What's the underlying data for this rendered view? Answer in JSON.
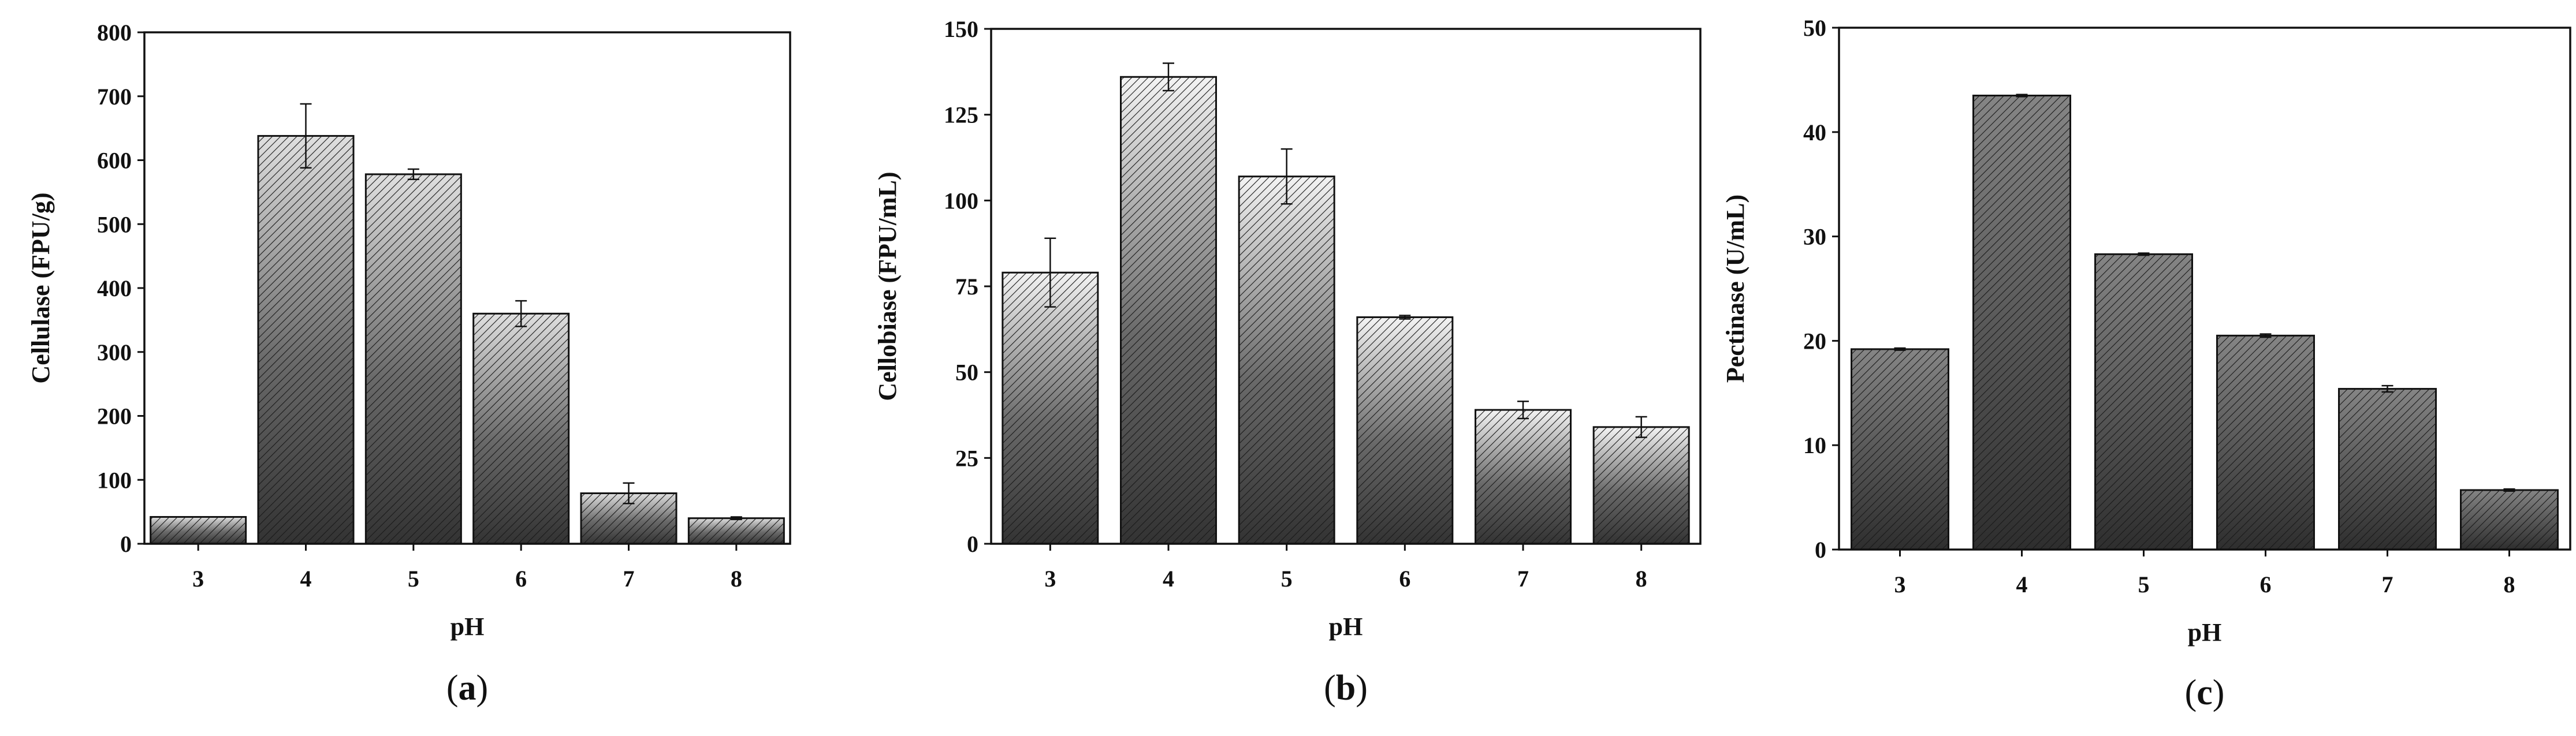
{
  "chart_data": [
    {
      "type": "bar",
      "panel": "(a)",
      "categories": [
        "3",
        "4",
        "5",
        "6",
        "7",
        "8"
      ],
      "values": [
        42,
        638,
        578,
        360,
        79,
        40
      ],
      "errors": [
        0,
        50,
        8,
        20,
        16,
        2
      ],
      "xlabel": "pH",
      "ylabel": "Cellulase (FPU/g)",
      "ylim": [
        0,
        800
      ],
      "yticks": [
        0,
        100,
        200,
        300,
        400,
        500,
        600,
        700,
        800
      ],
      "grid": false,
      "hatch": "diagonal",
      "colors": {
        "dark": "#333333",
        "mid": "#6a6a6a",
        "light": "#e0e0e0"
      }
    },
    {
      "type": "bar",
      "panel": "(b)",
      "categories": [
        "3",
        "4",
        "5",
        "6",
        "7",
        "8"
      ],
      "values": [
        79,
        136,
        107,
        66,
        39,
        34
      ],
      "errors": [
        10,
        4,
        8,
        0.5,
        2.5,
        3
      ],
      "xlabel": "pH",
      "ylabel": "Cellobiase (FPU/mL)",
      "ylim": [
        0,
        150
      ],
      "yticks": [
        0,
        25,
        50,
        75,
        100,
        125,
        150
      ],
      "grid": false,
      "hatch": "diagonal",
      "colors": {
        "dark": "#333333",
        "mid": "#6a6a6a",
        "light": "#f4f4f4"
      }
    },
    {
      "type": "bar",
      "panel": "(c)",
      "categories": [
        "3",
        "4",
        "5",
        "6",
        "7",
        "8"
      ],
      "values": [
        19.2,
        43.5,
        28.3,
        20.5,
        15.4,
        5.7
      ],
      "errors": [
        0.1,
        0.1,
        0.1,
        0.15,
        0.3,
        0.1
      ],
      "xlabel": "pH",
      "ylabel": "Pectinase (U/mL)",
      "ylim": [
        0,
        50
      ],
      "yticks": [
        0,
        10,
        20,
        30,
        40,
        50
      ],
      "grid": false,
      "hatch": "diagonal",
      "colors": {
        "dark": "#2e2e2e",
        "mid": "#555555",
        "light": "#858585"
      }
    }
  ]
}
